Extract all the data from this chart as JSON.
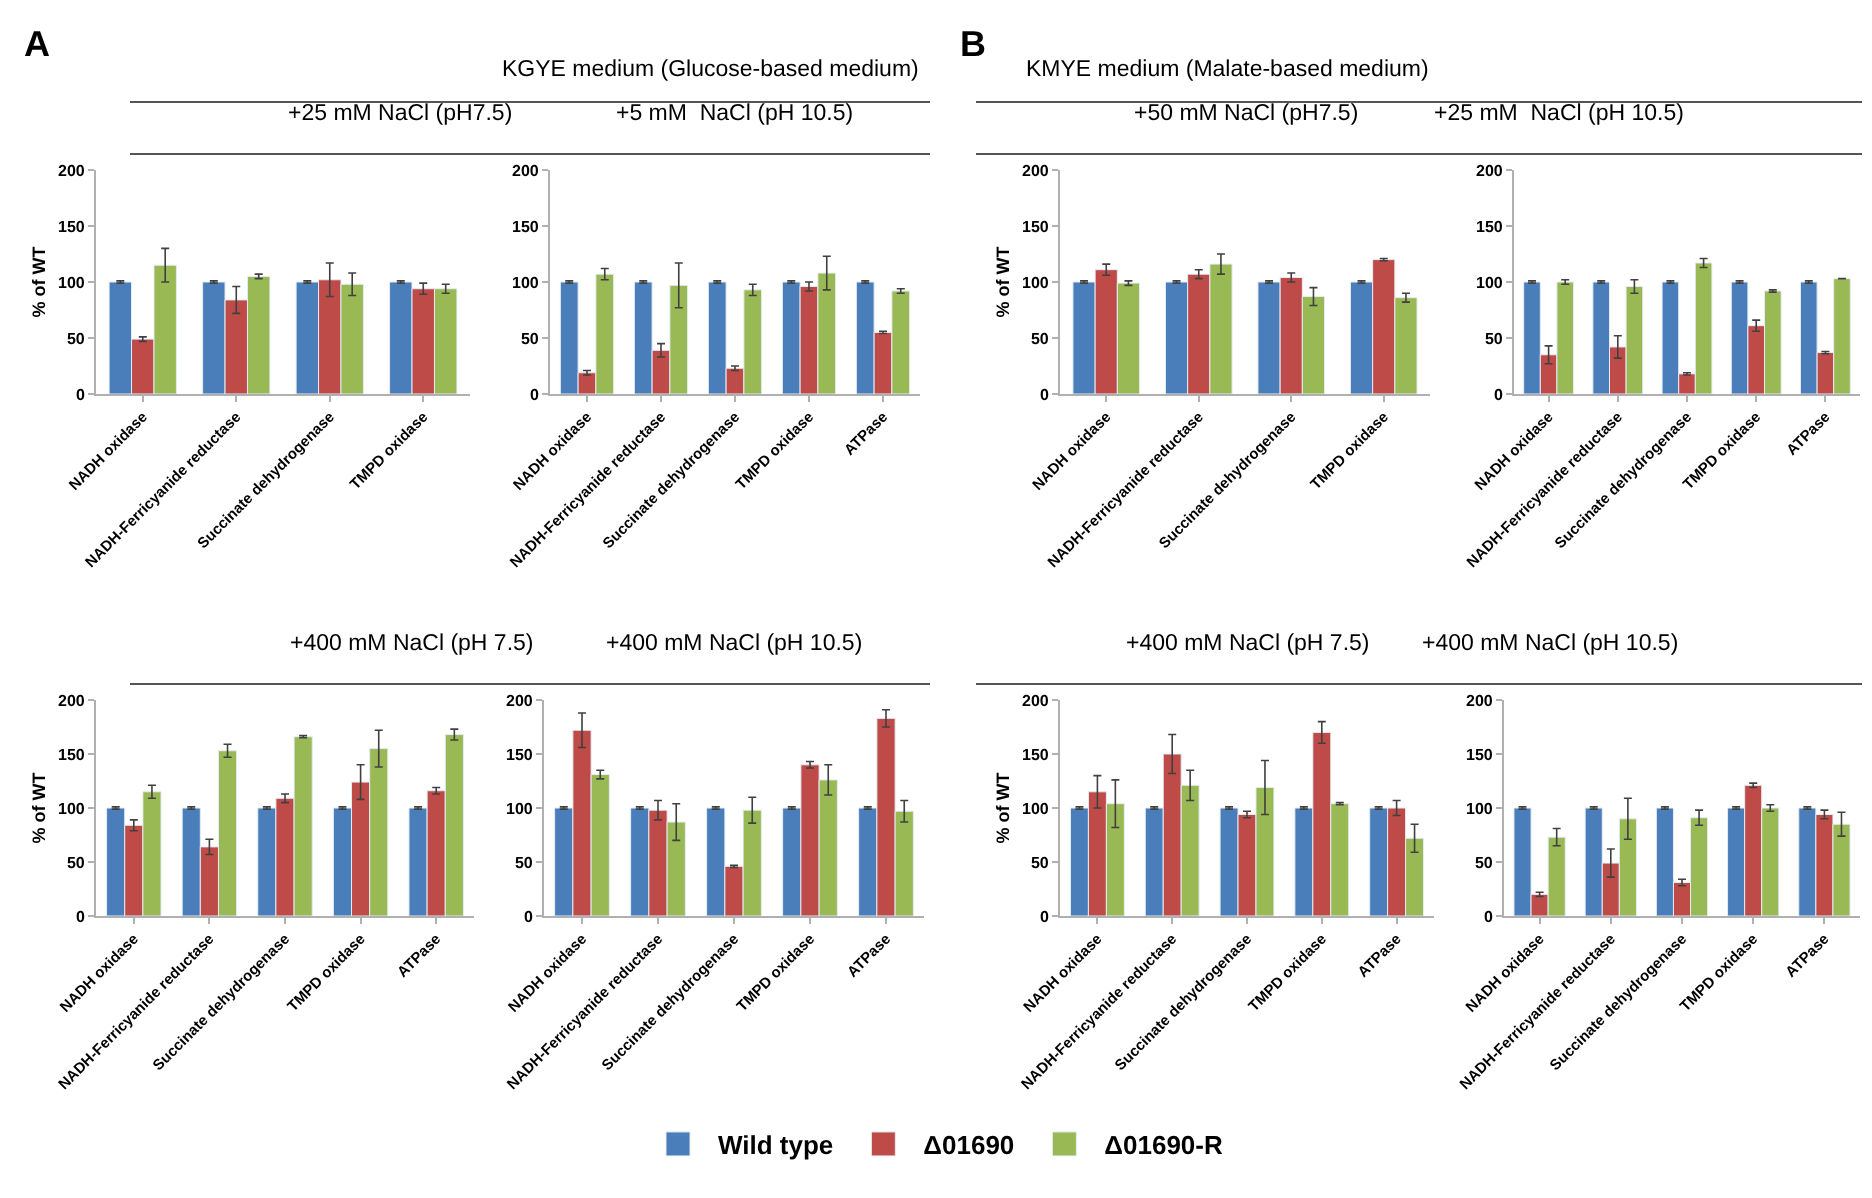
{
  "chart_data": [
    {
      "type": "bar",
      "title": "+25 mM NaCl (pH7.5)",
      "ylabel": "% of WT",
      "annotations": [
        "A",
        "KGYE medium (Glucose-based medium)"
      ],
      "categories": [
        "NADH oxidase",
        "NADH-Ferricyanide reductase",
        "Succinate dehydrogenase",
        "TMPD oxidase"
      ],
      "ylim": [
        0,
        200
      ],
      "yticks": [
        0,
        50,
        100,
        150,
        200
      ],
      "legend": "bottom",
      "series": [
        {
          "name": "Wild type",
          "color": "#4a7ebb",
          "values": [
            100,
            100,
            100,
            100
          ],
          "errors": [
            1,
            1,
            1,
            1
          ]
        },
        {
          "name": "Δ01690",
          "color": "#be4b48",
          "values": [
            49,
            84,
            102,
            94
          ],
          "errors": [
            2,
            12,
            15,
            5
          ]
        },
        {
          "name": "Δ01690-R",
          "color": "#98b954",
          "values": [
            115,
            105,
            98,
            94
          ],
          "errors": [
            15,
            2,
            10,
            4
          ]
        }
      ]
    },
    {
      "type": "bar",
      "title": "+5 mM  NaCl (pH 10.5)",
      "categories": [
        "NADH oxidase",
        "NADH-Ferricyanide reductase",
        "Succinate dehydrogenase",
        "TMPD oxidase",
        "ATPase"
      ],
      "ylim": [
        0,
        200
      ],
      "yticks": [
        0,
        50,
        100,
        150,
        200
      ],
      "series": [
        {
          "color": "#4a7ebb",
          "values": [
            100,
            100,
            100,
            100,
            100
          ],
          "errors": [
            1,
            1,
            1,
            1,
            1
          ]
        },
        {
          "color": "#be4b48",
          "values": [
            19,
            39,
            23,
            96,
            55
          ],
          "errors": [
            2,
            6,
            2,
            4,
            1
          ]
        },
        {
          "color": "#98b954",
          "values": [
            107,
            97,
            93,
            108,
            92
          ],
          "errors": [
            5,
            20,
            5,
            15,
            2
          ]
        }
      ]
    },
    {
      "type": "bar",
      "title": "+50 mM NaCl (pH7.5)",
      "ylabel": "% of WT",
      "annotations": [
        "B",
        "KMYE medium (Malate-based medium)"
      ],
      "categories": [
        "NADH oxidase",
        "NADH-Ferricyanide reductase",
        "Succinate dehydrogenase",
        "TMPD oxidase"
      ],
      "ylim": [
        0,
        200
      ],
      "yticks": [
        0,
        50,
        100,
        150,
        200
      ],
      "series": [
        {
          "color": "#4a7ebb",
          "values": [
            100,
            100,
            100,
            100
          ],
          "errors": [
            1,
            1,
            1,
            1
          ]
        },
        {
          "color": "#be4b48",
          "values": [
            111,
            107,
            104,
            120
          ],
          "errors": [
            5,
            4,
            4,
            1
          ]
        },
        {
          "color": "#98b954",
          "values": [
            99,
            116,
            87,
            86
          ],
          "errors": [
            2,
            9,
            8,
            4
          ]
        }
      ]
    },
    {
      "type": "bar",
      "title": "+25 mM  NaCl (pH 10.5)",
      "categories": [
        "NADH oxidase",
        "NADH-Ferricyanide reductase",
        "Succinate dehydrogenase",
        "TMPD oxidase",
        "ATPase"
      ],
      "ylim": [
        0,
        200
      ],
      "yticks": [
        0,
        50,
        100,
        150,
        200
      ],
      "series": [
        {
          "color": "#4a7ebb",
          "values": [
            100,
            100,
            100,
            100,
            100
          ],
          "errors": [
            1,
            1,
            1,
            1,
            1
          ]
        },
        {
          "color": "#be4b48",
          "values": [
            35,
            42,
            18,
            61,
            37
          ],
          "errors": [
            8,
            10,
            1,
            5,
            1
          ]
        },
        {
          "color": "#98b954",
          "values": [
            100,
            96,
            117,
            92,
            103
          ],
          "errors": [
            2,
            6,
            4,
            1,
            null
          ]
        }
      ]
    },
    {
      "type": "bar",
      "title": "+400 mM NaCl (pH 7.5)",
      "ylabel": "% of WT",
      "categories": [
        "NADH oxidase",
        "NADH-Ferricyanide reductase",
        "Succinate dehydrogenase",
        "TMPD oxidase",
        "ATPase"
      ],
      "ylim": [
        0,
        200
      ],
      "yticks": [
        0,
        50,
        100,
        150,
        200
      ],
      "series": [
        {
          "color": "#4a7ebb",
          "values": [
            100,
            100,
            100,
            100,
            100
          ],
          "errors": [
            1,
            1,
            1,
            1,
            1
          ]
        },
        {
          "color": "#be4b48",
          "values": [
            84,
            64,
            109,
            124,
            116
          ],
          "errors": [
            5,
            7,
            4,
            16,
            3
          ]
        },
        {
          "color": "#98b954",
          "values": [
            115,
            153,
            166,
            155,
            168
          ],
          "errors": [
            6,
            6,
            1,
            17,
            5
          ]
        }
      ]
    },
    {
      "type": "bar",
      "title": "+400 mM NaCl (pH 10.5)",
      "categories": [
        "NADH oxidase",
        "NADH-Ferricyanide reductase",
        "Succinate dehydrogenase",
        "TMPD oxidase",
        "ATPase"
      ],
      "ylim": [
        0,
        200
      ],
      "yticks": [
        0,
        50,
        100,
        150,
        200
      ],
      "series": [
        {
          "color": "#4a7ebb",
          "values": [
            100,
            100,
            100,
            100,
            100
          ],
          "errors": [
            1,
            1,
            1,
            1,
            1
          ]
        },
        {
          "color": "#be4b48",
          "values": [
            172,
            98,
            46,
            140,
            183
          ],
          "errors": [
            16,
            9,
            1,
            3,
            8
          ]
        },
        {
          "color": "#98b954",
          "values": [
            131,
            87,
            98,
            126,
            97
          ],
          "errors": [
            4,
            17,
            12,
            14,
            10
          ]
        }
      ]
    },
    {
      "type": "bar",
      "title": "+400 mM NaCl (pH 7.5)",
      "ylabel": "% of WT",
      "categories": [
        "NADH oxidase",
        "NADH-Ferricyanide reductase",
        "Succinate dehydrogenase",
        "TMPD oxidase",
        "ATPase"
      ],
      "ylim": [
        0,
        200
      ],
      "yticks": [
        0,
        50,
        100,
        150,
        200
      ],
      "series": [
        {
          "color": "#4a7ebb",
          "values": [
            100,
            100,
            100,
            100,
            100
          ],
          "errors": [
            1,
            1,
            1,
            1,
            1
          ]
        },
        {
          "color": "#be4b48",
          "values": [
            115,
            150,
            94,
            170,
            100
          ],
          "errors": [
            15,
            18,
            3,
            10,
            7
          ]
        },
        {
          "color": "#98b954",
          "values": [
            104,
            121,
            119,
            104,
            72
          ],
          "errors": [
            22,
            14,
            25,
            1,
            13
          ]
        }
      ]
    },
    {
      "type": "bar",
      "title": "+400 mM NaCl (pH 10.5)",
      "categories": [
        "NADH oxidase",
        "NADH-Ferricyanide reductase",
        "Succinate dehydrogenase",
        "TMPD oxidase",
        "ATPase"
      ],
      "ylim": [
        0,
        200
      ],
      "yticks": [
        0,
        50,
        100,
        150,
        200
      ],
      "series": [
        {
          "color": "#4a7ebb",
          "values": [
            100,
            100,
            100,
            100,
            100
          ],
          "errors": [
            1,
            1,
            1,
            1,
            1
          ]
        },
        {
          "color": "#be4b48",
          "values": [
            20,
            49,
            31,
            121,
            94
          ],
          "errors": [
            2,
            13,
            3,
            2,
            4
          ]
        },
        {
          "color": "#98b954",
          "values": [
            73,
            90,
            91,
            100,
            85
          ],
          "errors": [
            8,
            19,
            7,
            3,
            11
          ]
        }
      ]
    }
  ]
}
